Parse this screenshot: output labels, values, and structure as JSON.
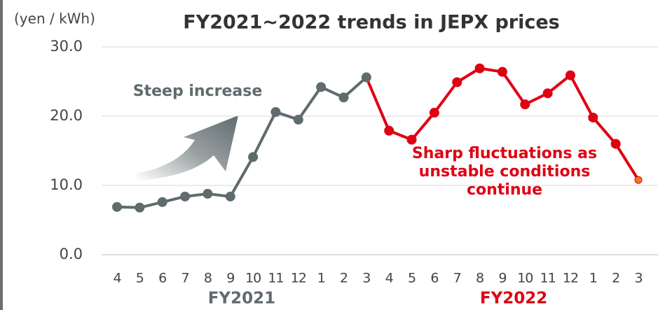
{
  "chart_data": {
    "type": "line",
    "title": "FY2021~2022 trends in JEPX prices",
    "y_axis_label": "(yen / kWh)",
    "categories": [
      "4",
      "5",
      "6",
      "7",
      "8",
      "9",
      "10",
      "11",
      "12",
      "1",
      "2",
      "3",
      "4",
      "5",
      "6",
      "7",
      "8",
      "9",
      "10",
      "11",
      "12",
      "1",
      "2",
      "3"
    ],
    "groups": [
      {
        "name": "FY2021",
        "color": "#5f6b6d"
      },
      {
        "name": "FY2022",
        "color": "#e00012"
      }
    ],
    "series": [
      {
        "name": "FY2021",
        "color": "#5f6b6d",
        "values": [
          6.9,
          6.8,
          7.6,
          8.4,
          8.8,
          8.4,
          14.1,
          20.6,
          19.5,
          24.2,
          22.7,
          25.6,
          null,
          null,
          null,
          null,
          null,
          null,
          null,
          null,
          null,
          null,
          null,
          null
        ]
      },
      {
        "name": "FY2022",
        "color": "#e00012",
        "last_point_color": "#f07a1a",
        "values": [
          null,
          null,
          null,
          null,
          null,
          null,
          null,
          null,
          null,
          null,
          null,
          25.6,
          17.9,
          16.6,
          20.5,
          24.9,
          26.9,
          26.4,
          21.7,
          23.3,
          25.9,
          19.8,
          16.0,
          10.8
        ]
      }
    ],
    "annotations": [
      {
        "lines": [
          "Steep increase"
        ],
        "color": "#5f6b6d"
      },
      {
        "lines": [
          "Sharp fluctuations as",
          "unstable conditions",
          "continue"
        ],
        "color": "#e00012"
      }
    ],
    "ylim": [
      0,
      30
    ],
    "yticks": [
      {
        "value": 0,
        "label": "0.0"
      },
      {
        "value": 10,
        "label": "10.0"
      },
      {
        "value": 20,
        "label": "20.0"
      },
      {
        "value": 30,
        "label": "30.0"
      }
    ],
    "grid": true
  }
}
